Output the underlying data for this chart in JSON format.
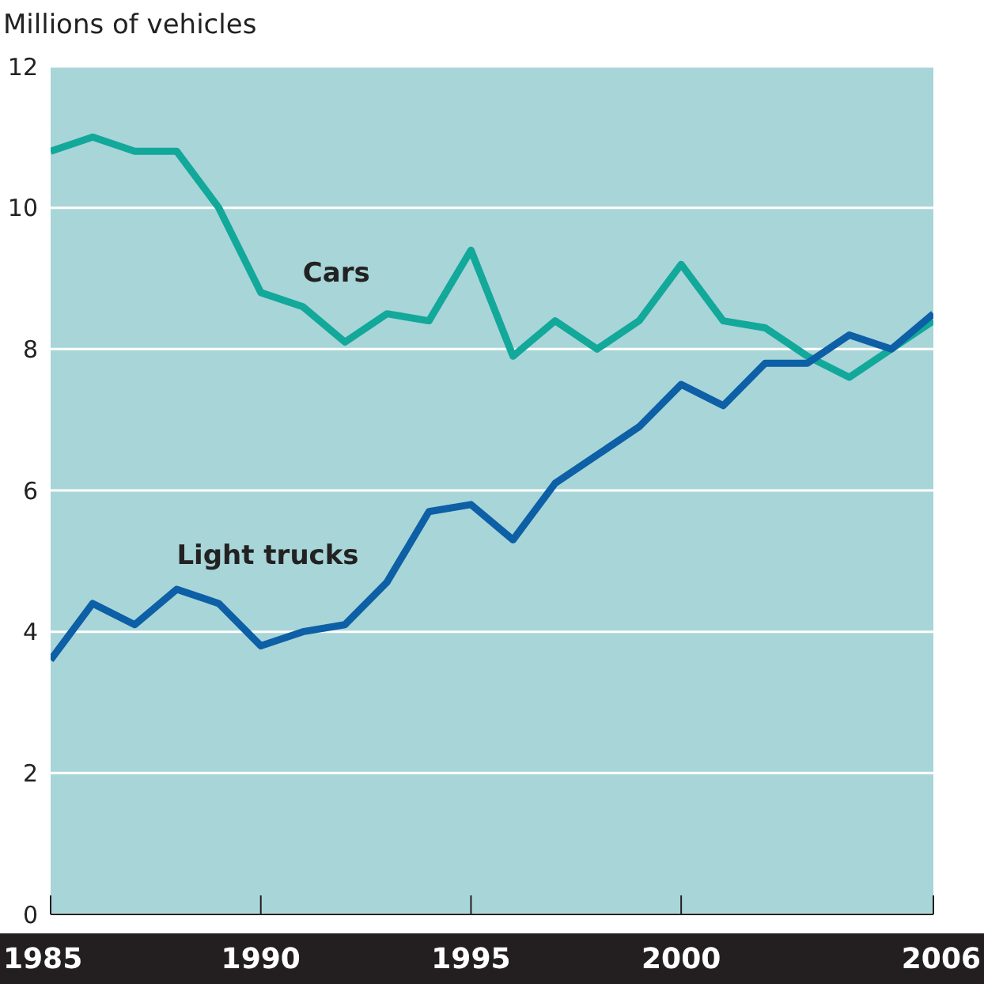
{
  "chart_data": {
    "type": "line",
    "ylabel": "Millions of vehicles",
    "x": [
      1985,
      1986,
      1987,
      1988,
      1989,
      1990,
      1991,
      1992,
      1993,
      1994,
      1995,
      1996,
      1997,
      1998,
      1999,
      2000,
      2001,
      2002,
      2003,
      2004,
      2005,
      2006
    ],
    "series": [
      {
        "name": "Cars",
        "color": "#12a89a",
        "values": [
          10.8,
          11.0,
          10.8,
          10.8,
          10.0,
          8.8,
          8.6,
          8.1,
          8.5,
          8.4,
          9.4,
          7.9,
          8.4,
          8.0,
          8.4,
          9.2,
          8.4,
          8.3,
          7.9,
          7.6,
          8.0,
          8.4
        ]
      },
      {
        "name": "Light trucks",
        "color": "#0d5fa6",
        "values": [
          3.6,
          4.4,
          4.1,
          4.6,
          4.4,
          3.8,
          4.0,
          4.1,
          4.7,
          5.7,
          5.8,
          5.3,
          6.1,
          6.5,
          6.9,
          7.5,
          7.2,
          7.8,
          7.8,
          8.2,
          8.0,
          8.5
        ]
      }
    ],
    "xlim": [
      1985,
      2006
    ],
    "xticks": [
      1985,
      1990,
      1995,
      2000,
      2006
    ],
    "ylim": [
      0,
      12
    ],
    "yticks": [
      0,
      2,
      4,
      6,
      8,
      10,
      12
    ],
    "grid": "y",
    "marker": "none",
    "line_style": "solid"
  }
}
